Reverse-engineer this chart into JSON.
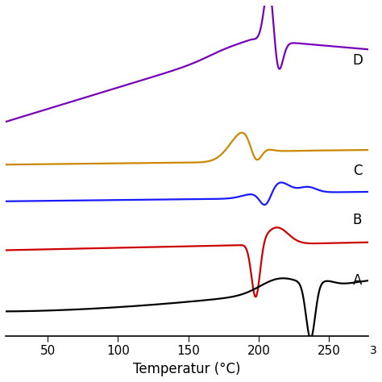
{
  "xlabel": "Temperatur (°C)",
  "xlim": [
    20,
    278
  ],
  "xticks": [
    50,
    100,
    150,
    200,
    250
  ],
  "background_color": "#ffffff",
  "curve_A_color": "#000000",
  "curve_B_color": "#cc0000",
  "curve_C_color": "#1a1aff",
  "curve_orange_color": "#cc8800",
  "curve_D_color": "#7700bb",
  "label_A": [
    267,
    1
  ],
  "label_B": [
    267,
    3.0
  ],
  "label_C": [
    267,
    4.6
  ],
  "label_D": [
    267,
    8.2
  ],
  "ylim": [
    -0.8,
    10.0
  ]
}
